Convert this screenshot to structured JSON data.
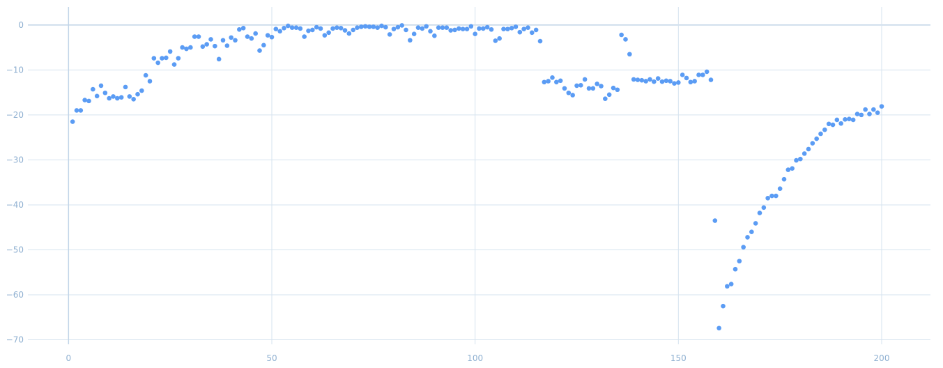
{
  "chart_data": {
    "type": "scatter",
    "title": "",
    "xlabel": "",
    "ylabel": "",
    "xlim": [
      -10,
      212
    ],
    "ylim": [
      -71,
      4
    ],
    "x_ticks": [
      0,
      50,
      100,
      150,
      200
    ],
    "y_ticks": [
      0,
      -10,
      -20,
      -30,
      -40,
      -50,
      -60,
      -70
    ],
    "x_tick_labels": [
      "0",
      "50",
      "100",
      "150",
      "200"
    ],
    "y_tick_labels": [
      "0",
      "−10",
      "−20",
      "−30",
      "−40",
      "−50",
      "−60",
      "−70"
    ],
    "series": [
      {
        "name": "series-1",
        "color": "#5b9cf4",
        "x": [
          1,
          2,
          3,
          4,
          5,
          6,
          7,
          8,
          9,
          10,
          11,
          12,
          13,
          14,
          15,
          16,
          17,
          18,
          19,
          20,
          21,
          22,
          23,
          24,
          25,
          26,
          27,
          28,
          29,
          30,
          31,
          32,
          33,
          34,
          35,
          36,
          37,
          38,
          39,
          40,
          41,
          42,
          43,
          44,
          45,
          46,
          47,
          48,
          49,
          50,
          51,
          52,
          53,
          54,
          55,
          56,
          57,
          58,
          59,
          60,
          61,
          62,
          63,
          64,
          65,
          66,
          67,
          68,
          69,
          70,
          71,
          72,
          73,
          74,
          75,
          76,
          77,
          78,
          79,
          80,
          81,
          82,
          83,
          84,
          85,
          86,
          87,
          88,
          89,
          90,
          91,
          92,
          93,
          94,
          95,
          96,
          97,
          98,
          99,
          100,
          101,
          102,
          103,
          104,
          105,
          106,
          107,
          108,
          109,
          110,
          111,
          112,
          113,
          114,
          115,
          116,
          117,
          118,
          119,
          120,
          121,
          122,
          123,
          124,
          125,
          126,
          127,
          128,
          129,
          130,
          131,
          132,
          133,
          134,
          135,
          136,
          137,
          138,
          139,
          140,
          141,
          142,
          143,
          144,
          145,
          146,
          147,
          148,
          149,
          150,
          151,
          152,
          153,
          154,
          155,
          156,
          157,
          158,
          159,
          160,
          161,
          162,
          163,
          164,
          165,
          166,
          167,
          168,
          169,
          170,
          171,
          172,
          173,
          174,
          175,
          176,
          177,
          178,
          179,
          180,
          181,
          182,
          183,
          184,
          185,
          186,
          187,
          188,
          189,
          190,
          191,
          192,
          193,
          194,
          195,
          196,
          197,
          198,
          199,
          200
        ],
        "y": [
          -21.5,
          -19,
          -19,
          -16.7,
          -16.9,
          -14.3,
          -15.8,
          -13.5,
          -15.1,
          -16.3,
          -15.9,
          -16.3,
          -16.1,
          -13.8,
          -15.9,
          -16.5,
          -15.4,
          -14.6,
          -11.2,
          -12.5,
          -7.4,
          -8.4,
          -7.4,
          -7.3,
          -5.9,
          -8.8,
          -7.4,
          -5,
          -5.3,
          -5,
          -2.6,
          -2.6,
          -4.8,
          -4.3,
          -3.2,
          -4.7,
          -7.6,
          -3.4,
          -4.6,
          -2.8,
          -3.4,
          -1,
          -0.7,
          -2.6,
          -3,
          -1.9,
          -5.7,
          -4.5,
          -2.3,
          -2.7,
          -0.9,
          -1.4,
          -0.7,
          -0.2,
          -0.6,
          -0.6,
          -0.8,
          -2.6,
          -1.3,
          -1.1,
          -0.5,
          -0.8,
          -2.3,
          -1.7,
          -0.8,
          -0.6,
          -0.7,
          -1.2,
          -1.9,
          -1.1,
          -0.6,
          -0.4,
          -0.3,
          -0.4,
          -0.4,
          -0.6,
          -0.2,
          -0.5,
          -2.1,
          -0.9,
          -0.5,
          -0.1,
          -1.1,
          -3.4,
          -2,
          -0.6,
          -0.8,
          -0.3,
          -1.4,
          -2.4,
          -0.6,
          -0.6,
          -0.6,
          -1.2,
          -1.1,
          -0.8,
          -0.9,
          -0.9,
          -0.3,
          -2,
          -0.8,
          -0.8,
          -0.5,
          -1,
          -3.5,
          -3,
          -0.9,
          -0.9,
          -0.7,
          -0.4,
          -1.6,
          -0.9,
          -0.6,
          -1.7,
          -1.1,
          -3.6,
          -12.7,
          -12.5,
          -11.7,
          -12.7,
          -12.4,
          -14.1,
          -15.1,
          -15.6,
          -13.5,
          -13.4,
          -12.1,
          -14.1,
          -14.1,
          -13.1,
          -13.6,
          -16.4,
          -15.5,
          -14,
          -14.4,
          -2.2,
          -3.2,
          -6.5,
          -12.1,
          -12.2,
          -12.3,
          -12.5,
          -12.1,
          -12.6,
          -11.9,
          -12.6,
          -12.4,
          -12.5,
          -13,
          -12.8,
          -11.1,
          -11.8,
          -12.7,
          -12.5,
          -11.1,
          -11.1,
          -10.4,
          -12.2,
          -43.5,
          -67.4,
          -62.5,
          -58.1,
          -57.6,
          -54.3,
          -52.5,
          -49.4,
          -47.2,
          -46,
          -44.1,
          -41.8,
          -40.6,
          -38.5,
          -38,
          -38,
          -36.4,
          -34.3,
          -32.2,
          -31.9,
          -30.1,
          -29.8,
          -28.6,
          -27.6,
          -26.3,
          -25.3,
          -24.2,
          -23.3,
          -22,
          -22.2,
          -21.1,
          -21.9,
          -21,
          -20.9,
          -21.1,
          -19.8,
          -20,
          -18.8,
          -19.8,
          -18.8,
          -19.5,
          -18.1
        ]
      }
    ]
  }
}
